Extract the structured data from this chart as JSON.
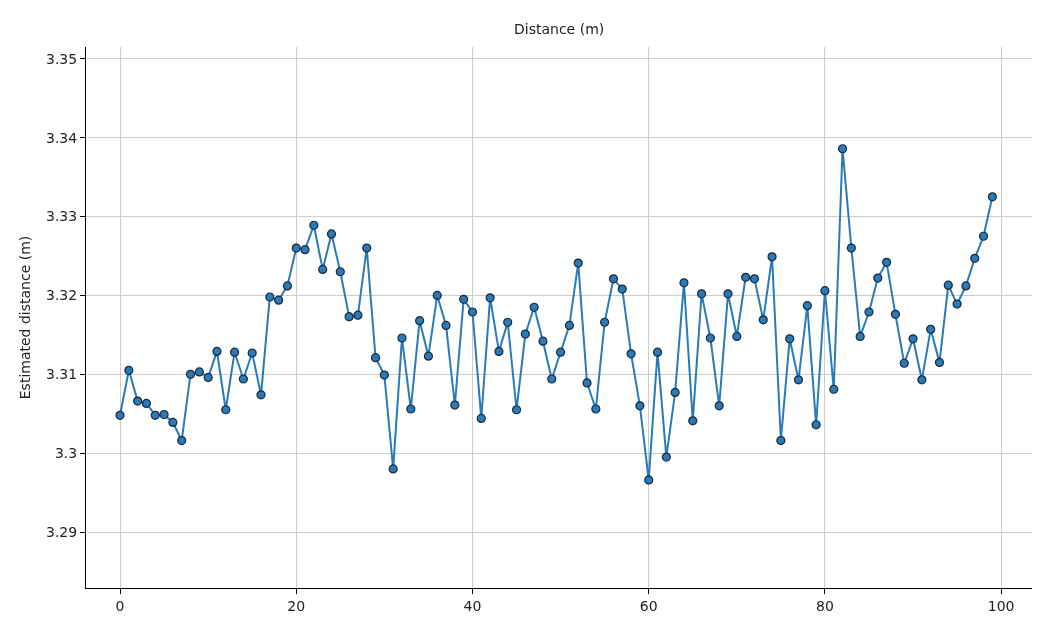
{
  "chart_data": {
    "type": "line",
    "xlabel": "Distance (m)",
    "ylabel": "Estimated distance (m)",
    "x": [
      0,
      1,
      2,
      3,
      4,
      5,
      6,
      7,
      8,
      9,
      10,
      11,
      12,
      13,
      14,
      15,
      16,
      17,
      18,
      19,
      20,
      21,
      22,
      23,
      24,
      25,
      26,
      27,
      28,
      29,
      30,
      31,
      32,
      33,
      34,
      35,
      36,
      37,
      38,
      39,
      40,
      41,
      42,
      43,
      44,
      45,
      46,
      47,
      48,
      49,
      50,
      51,
      52,
      53,
      54,
      55,
      56,
      57,
      58,
      59,
      60,
      61,
      62,
      63,
      64,
      65,
      66,
      67,
      68,
      69,
      70,
      71,
      72,
      73,
      74,
      75,
      76,
      77,
      78,
      79,
      80,
      81,
      82,
      83,
      84,
      85,
      86,
      87,
      88,
      89,
      90,
      91,
      92,
      93,
      94,
      95,
      96,
      97,
      98,
      99
    ],
    "series": [
      {
        "color": "#2a7ab8",
        "values": [
          3.3048,
          3.3105,
          3.3066,
          3.3063,
          3.3048,
          3.3049,
          3.3039,
          3.3016,
          3.31,
          3.3103,
          3.3096,
          3.3129,
          3.3055,
          3.3128,
          3.3094,
          3.3127,
          3.3074,
          3.3198,
          3.3194,
          3.3212,
          3.326,
          3.3258,
          3.3289,
          3.3233,
          3.3278,
          3.323,
          3.3173,
          3.3175,
          3.326,
          3.3121,
          3.3099,
          3.298,
          3.3146,
          3.3056,
          3.3168,
          3.3123,
          3.32,
          3.3162,
          3.3061,
          3.3195,
          3.3179,
          3.3044,
          3.3197,
          3.3129,
          3.3166,
          3.3055,
          3.3151,
          3.3185,
          3.3142,
          3.3094,
          3.3128,
          3.3162,
          3.3241,
          3.3089,
          3.3056,
          3.3166,
          3.3221,
          3.3208,
          3.3126,
          3.306,
          3.2966,
          3.3128,
          3.2995,
          3.3077,
          3.3216,
          3.3041,
          3.3202,
          3.3146,
          3.306,
          3.3202,
          3.3148,
          3.3223,
          3.3221,
          3.3169,
          3.3249,
          3.3016,
          3.3145,
          3.3093,
          3.3187,
          3.3036,
          3.3206,
          3.3081,
          3.3386,
          3.326,
          3.3148,
          3.3179,
          3.3222,
          3.3242,
          3.3176,
          3.3114,
          3.3145,
          3.3093,
          3.3157,
          3.3115,
          3.3213,
          3.3189,
          3.3212,
          3.3247,
          3.3275,
          3.3325
        ]
      }
    ],
    "xlim": [
      -3.86,
      103.5
    ],
    "xticks": [
      0,
      20,
      40,
      60,
      80,
      100
    ],
    "ylim": [
      3.2829,
      3.3515
    ],
    "yticks": [
      3.29,
      3.3,
      3.31,
      3.32,
      3.33,
      3.34,
      3.35
    ],
    "grid": true,
    "marker": "circle",
    "line_style": "solid"
  }
}
